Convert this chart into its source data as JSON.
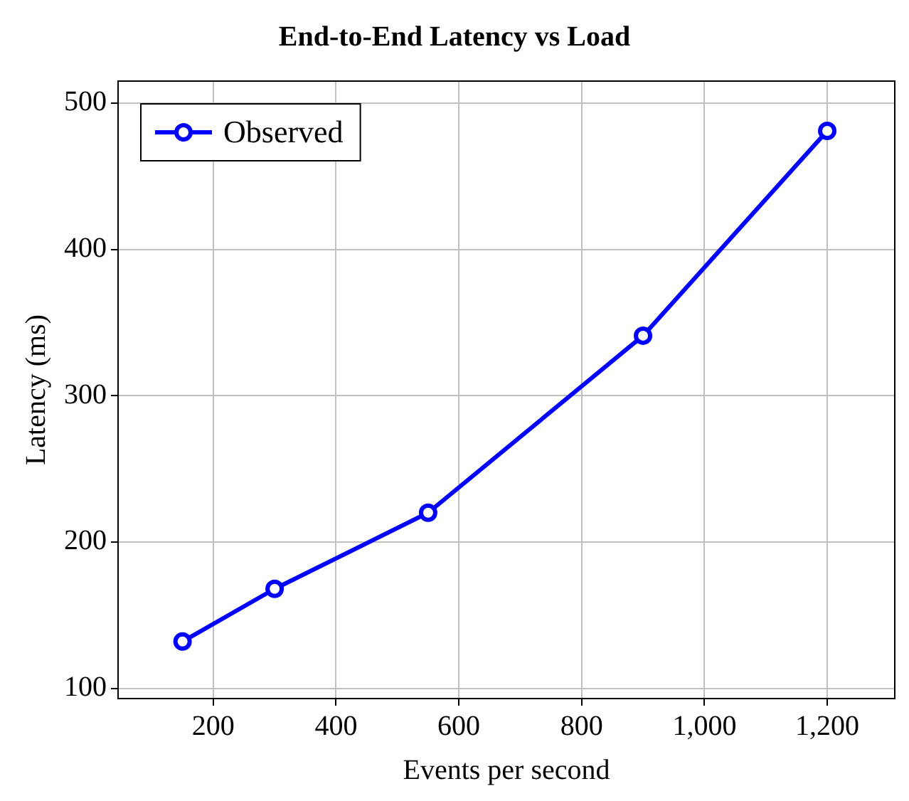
{
  "chart_data": {
    "type": "line",
    "title": "End-to-End Latency vs Load",
    "xlabel": "Events per second",
    "ylabel": "Latency (ms)",
    "x": [
      150,
      300,
      550,
      900,
      1200
    ],
    "series": [
      {
        "name": "Observed",
        "color": "#0000ff",
        "values": [
          132,
          168,
          220,
          341,
          481
        ]
      }
    ],
    "xlim": [
      45,
      1310
    ],
    "xticks": [
      200,
      400,
      600,
      800,
      {
        "value": 1000,
        "label": "1,000"
      },
      {
        "value": 1200,
        "label": "1,200"
      }
    ],
    "ylim": [
      93,
      515
    ],
    "yticks": [
      100,
      200,
      300,
      400,
      500
    ],
    "grid": true,
    "legend": "top left",
    "marker": "circle",
    "line_style": "solid"
  }
}
